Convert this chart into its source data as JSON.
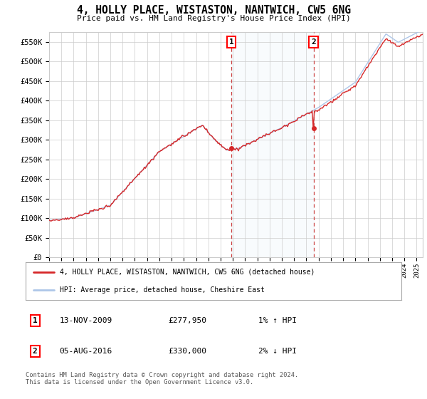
{
  "title": "4, HOLLY PLACE, WISTASTON, NANTWICH, CW5 6NG",
  "subtitle": "Price paid vs. HM Land Registry's House Price Index (HPI)",
  "ylim": [
    0,
    575000
  ],
  "yticks": [
    0,
    50000,
    100000,
    150000,
    200000,
    250000,
    300000,
    350000,
    400000,
    450000,
    500000,
    550000
  ],
  "ytick_labels": [
    "£0",
    "£50K",
    "£100K",
    "£150K",
    "£200K",
    "£250K",
    "£300K",
    "£350K",
    "£400K",
    "£450K",
    "£500K",
    "£550K"
  ],
  "hpi_color": "#aec6e8",
  "price_color": "#d62728",
  "sale1_date": 2009.87,
  "sale1_price": 277950,
  "sale1_label": "1",
  "sale2_date": 2016.59,
  "sale2_price": 330000,
  "sale2_label": "2",
  "legend_line1": "4, HOLLY PLACE, WISTASTON, NANTWICH, CW5 6NG (detached house)",
  "legend_line2": "HPI: Average price, detached house, Cheshire East",
  "table_row1_num": "1",
  "table_row1_date": "13-NOV-2009",
  "table_row1_price": "£277,950",
  "table_row1_hpi": "1% ↑ HPI",
  "table_row2_num": "2",
  "table_row2_date": "05-AUG-2016",
  "table_row2_price": "£330,000",
  "table_row2_hpi": "2% ↓ HPI",
  "footnote": "Contains HM Land Registry data © Crown copyright and database right 2024.\nThis data is licensed under the Open Government Licence v3.0.",
  "background_color": "#ffffff",
  "plot_bg_color": "#ffffff",
  "grid_color": "#cccccc",
  "sale_vline_color": "#cc4444",
  "shade_color": "#dce9f5",
  "xlim_left": 1995,
  "xlim_right": 2025.5
}
